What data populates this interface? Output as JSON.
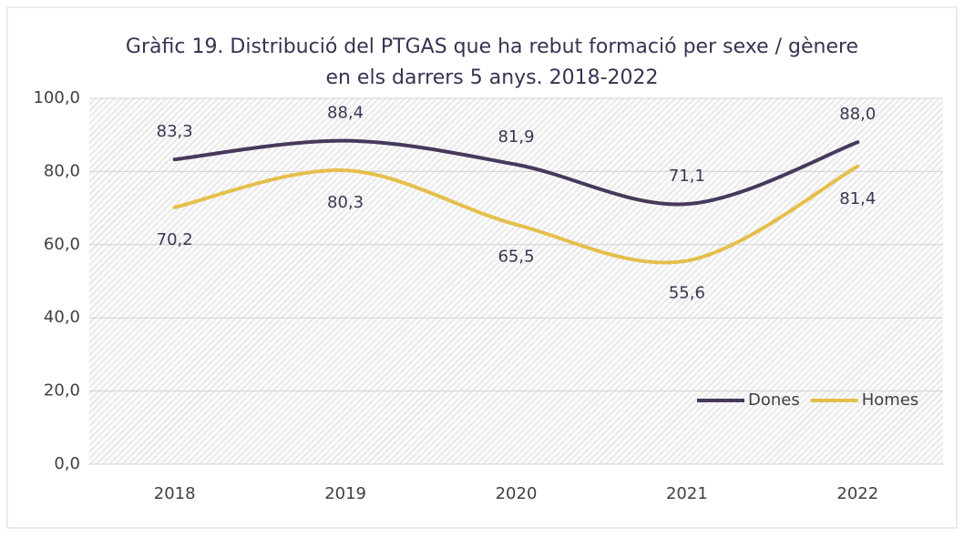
{
  "chart_data": {
    "type": "line",
    "title": [
      "Gràfic 19. Distribució del PTGAS que ha rebut formació per sexe / gènere",
      "en els darrers 5 anys. 2018-2022"
    ],
    "categories": [
      "2018",
      "2019",
      "2020",
      "2021",
      "2022"
    ],
    "series": [
      {
        "name": "Dones",
        "color": "#46395c",
        "values": [
          83.3,
          88.4,
          81.9,
          71.1,
          88.0
        ],
        "value_labels": [
          "83,3",
          "88,4",
          "81,9",
          "71,1",
          "88,0"
        ]
      },
      {
        "name": "Homes",
        "color": "#e5bf4c",
        "values": [
          70.2,
          80.3,
          65.5,
          55.6,
          81.4
        ],
        "value_labels": [
          "70,2",
          "80,3",
          "65,5",
          "55,6",
          "81,4"
        ]
      }
    ],
    "ylim": [
      0,
      100
    ],
    "yticks": [
      {
        "value": 0,
        "label": "0,0"
      },
      {
        "value": 20,
        "label": "20,0"
      },
      {
        "value": 40,
        "label": "40,0"
      },
      {
        "value": 60,
        "label": "60,0"
      },
      {
        "value": 80,
        "label": "80,0"
      },
      {
        "value": 100,
        "label": "100,0"
      }
    ],
    "smooth": true,
    "grid": true,
    "legend": "lower right"
  }
}
